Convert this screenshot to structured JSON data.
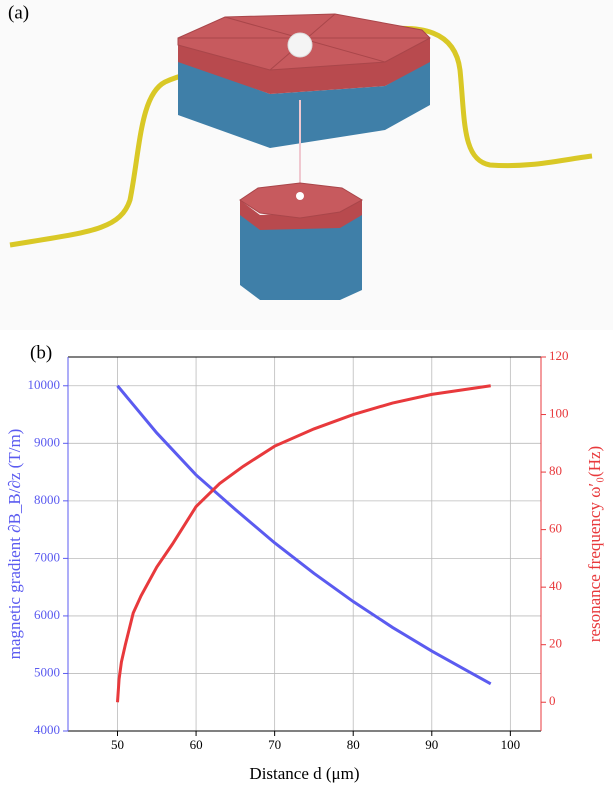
{
  "panel_a_label": "(a)",
  "chart_data": {
    "type": "line",
    "panel_label": "(b)",
    "xlabel": "Distance d (μm)",
    "ylabel": "magnetic gradient ∂B_B/∂z (T/m)",
    "y2label": "resonance frequency ω′₀(Hz)",
    "xlim": [
      43.7,
      103.9
    ],
    "xticks": [
      50,
      60,
      70,
      80,
      90,
      100
    ],
    "ylim": [
      4000,
      10500
    ],
    "yticks": [
      4000,
      5000,
      6000,
      7000,
      8000,
      9000,
      10000
    ],
    "y2lim": [
      -10,
      120
    ],
    "y2ticks": [
      0,
      20,
      40,
      60,
      80,
      100,
      120
    ],
    "grid": true,
    "series": [
      {
        "name": "magnetic gradient",
        "color": "#5b5bf0",
        "axis": "y",
        "x": [
          50,
          55,
          60,
          65,
          70,
          75,
          80,
          85,
          90,
          95,
          97.5
        ],
        "values": [
          10000,
          9180,
          8450,
          7850,
          7270,
          6740,
          6250,
          5800,
          5390,
          5010,
          4820
        ]
      },
      {
        "name": "resonance frequency",
        "color": "#e8393c",
        "axis": "y2",
        "x": [
          50,
          50.2,
          50.5,
          51,
          52,
          53,
          55,
          57,
          60,
          63,
          66,
          70,
          75,
          80,
          85,
          90,
          95,
          97.5
        ],
        "values": [
          0,
          8,
          14,
          20,
          31,
          37,
          47,
          55,
          68,
          76,
          82,
          89,
          95,
          100,
          104,
          107,
          109,
          110
        ]
      }
    ]
  }
}
